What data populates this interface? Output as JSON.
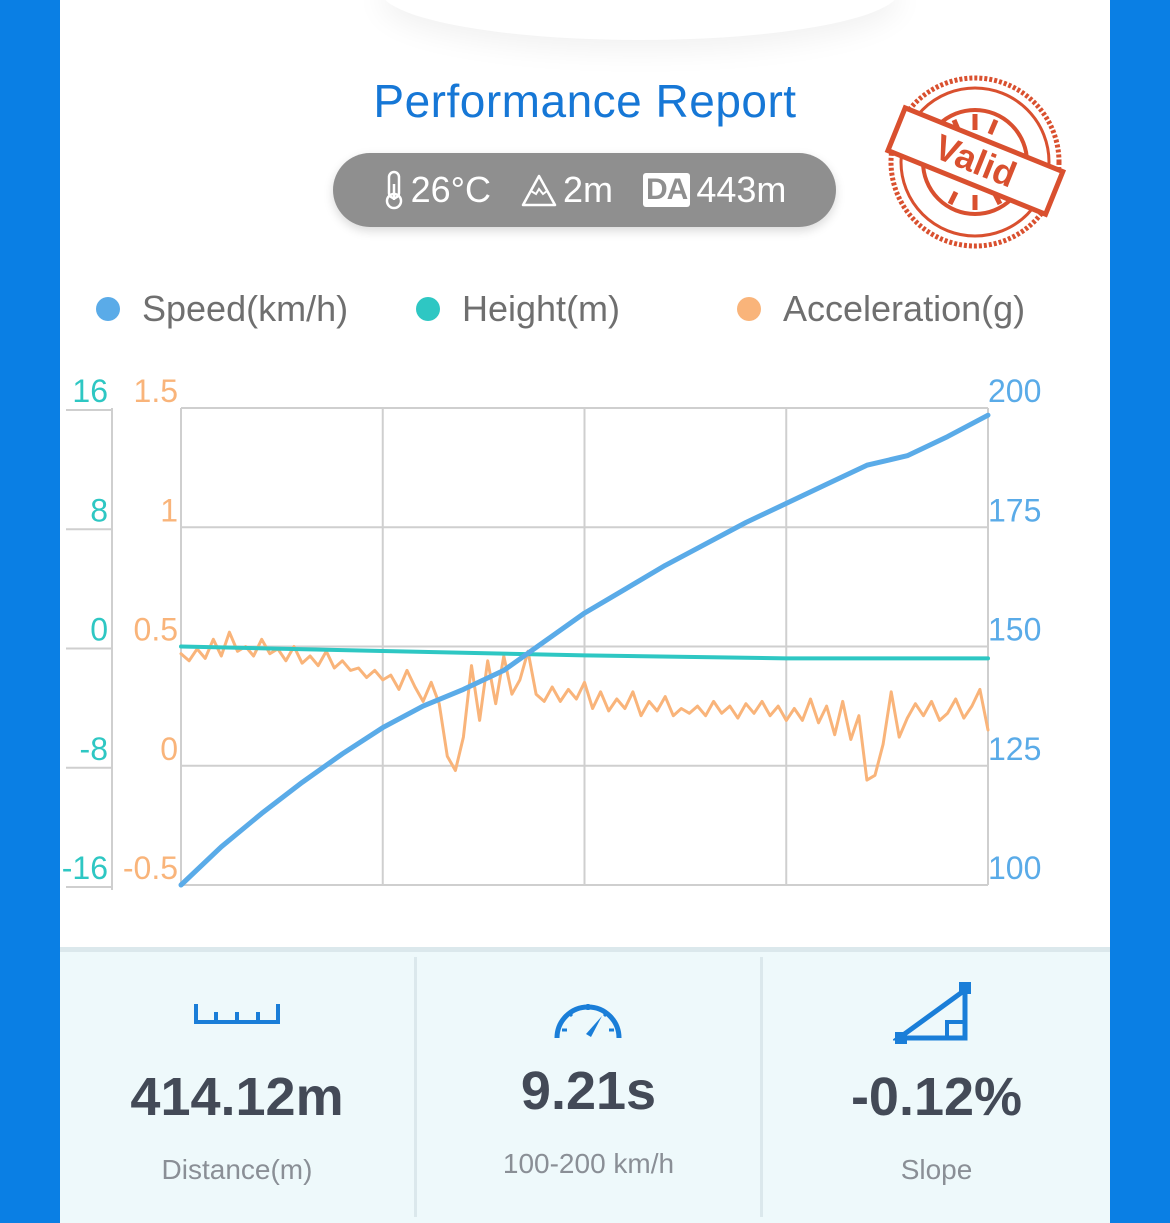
{
  "report": {
    "title": "Performance Report",
    "stamp_text": "Valid",
    "conditions": {
      "temperature": "26°C",
      "elevation": "2m",
      "da_label": "DA",
      "density_altitude": "443m"
    }
  },
  "legend": [
    {
      "label": "Speed(km/h)",
      "color": "#5aabe8"
    },
    {
      "label": "Height(m)",
      "color": "#2ec7c3"
    },
    {
      "label": "Acceleration(g)",
      "color": "#f9b47a"
    }
  ],
  "chart_data": {
    "type": "line",
    "xlabel": "",
    "grid": true,
    "axes": {
      "height_axis": {
        "ticks": [
          "16",
          "8",
          "0",
          "-8",
          "-16"
        ],
        "range": [
          -16,
          16
        ],
        "color": "#2ec7c3"
      },
      "accel_axis": {
        "ticks": [
          "1.5",
          "1",
          "0.5",
          "0",
          "-0.5"
        ],
        "range": [
          -0.5,
          1.5
        ],
        "color": "#f9b47a"
      },
      "speed_axis": {
        "ticks": [
          "200",
          "175",
          "150",
          "125",
          "100"
        ],
        "range": [
          100,
          200
        ],
        "color": "#5aabe8"
      }
    },
    "series": [
      {
        "name": "Speed(km/h)",
        "color": "#5aabe8",
        "x": [
          0,
          0.05,
          0.1,
          0.15,
          0.2,
          0.25,
          0.3,
          0.35,
          0.4,
          0.45,
          0.5,
          0.55,
          0.6,
          0.65,
          0.7,
          0.75,
          0.8,
          0.85,
          0.9,
          0.95,
          1.0
        ],
        "values": [
          100,
          108,
          115,
          121.5,
          127.5,
          133,
          137.5,
          141,
          145,
          151,
          157,
          162,
          167,
          171.5,
          176,
          180,
          184,
          188,
          190,
          194,
          198.5
        ]
      },
      {
        "name": "Height(m)",
        "color": "#2ec7c3",
        "x": [
          0,
          0.25,
          0.5,
          0.75,
          1.0
        ],
        "values": [
          0,
          -0.3,
          -0.6,
          -0.8,
          -0.8
        ]
      },
      {
        "name": "Acceleration(g)",
        "color": "#f9b47a",
        "x": [
          0.0,
          0.01,
          0.02,
          0.03,
          0.04,
          0.05,
          0.06,
          0.07,
          0.08,
          0.09,
          0.1,
          0.11,
          0.12,
          0.13,
          0.14,
          0.15,
          0.16,
          0.17,
          0.18,
          0.19,
          0.2,
          0.21,
          0.22,
          0.23,
          0.24,
          0.25,
          0.26,
          0.27,
          0.28,
          0.29,
          0.3,
          0.31,
          0.32,
          0.33,
          0.34,
          0.35,
          0.36,
          0.37,
          0.38,
          0.39,
          0.4,
          0.41,
          0.42,
          0.43,
          0.44,
          0.45,
          0.46,
          0.47,
          0.48,
          0.49,
          0.5,
          0.51,
          0.52,
          0.53,
          0.54,
          0.55,
          0.56,
          0.57,
          0.58,
          0.59,
          0.6,
          0.61,
          0.62,
          0.63,
          0.64,
          0.65,
          0.66,
          0.67,
          0.68,
          0.69,
          0.7,
          0.71,
          0.72,
          0.73,
          0.74,
          0.75,
          0.76,
          0.77,
          0.78,
          0.79,
          0.8,
          0.81,
          0.82,
          0.83,
          0.84,
          0.85,
          0.86,
          0.87,
          0.88,
          0.89,
          0.9,
          0.91,
          0.92,
          0.93,
          0.94,
          0.95,
          0.96,
          0.97,
          0.98,
          0.99,
          1.0
        ],
        "values": [
          0.47,
          0.44,
          0.49,
          0.45,
          0.53,
          0.46,
          0.56,
          0.48,
          0.5,
          0.46,
          0.53,
          0.47,
          0.49,
          0.44,
          0.5,
          0.43,
          0.46,
          0.42,
          0.48,
          0.41,
          0.44,
          0.4,
          0.41,
          0.37,
          0.4,
          0.36,
          0.38,
          0.32,
          0.4,
          0.33,
          0.27,
          0.35,
          0.26,
          0.04,
          -0.02,
          0.12,
          0.42,
          0.19,
          0.44,
          0.26,
          0.46,
          0.3,
          0.36,
          0.48,
          0.3,
          0.27,
          0.33,
          0.27,
          0.32,
          0.28,
          0.35,
          0.24,
          0.31,
          0.23,
          0.28,
          0.24,
          0.31,
          0.21,
          0.27,
          0.23,
          0.29,
          0.21,
          0.24,
          0.22,
          0.25,
          0.21,
          0.27,
          0.22,
          0.25,
          0.2,
          0.26,
          0.22,
          0.27,
          0.21,
          0.25,
          0.19,
          0.24,
          0.19,
          0.28,
          0.18,
          0.25,
          0.13,
          0.27,
          0.11,
          0.21,
          -0.06,
          -0.04,
          0.09,
          0.31,
          0.12,
          0.2,
          0.26,
          0.21,
          0.27,
          0.19,
          0.22,
          0.28,
          0.2,
          0.25,
          0.32,
          0.15
        ]
      }
    ]
  },
  "stats": [
    {
      "icon": "ruler-icon",
      "value": "414.12m",
      "label": "Distance(m)"
    },
    {
      "icon": "speedometer-icon",
      "value": "9.21s",
      "label": "100-200 km/h"
    },
    {
      "icon": "slope-icon",
      "value": "-0.12%",
      "label": "Slope"
    }
  ]
}
